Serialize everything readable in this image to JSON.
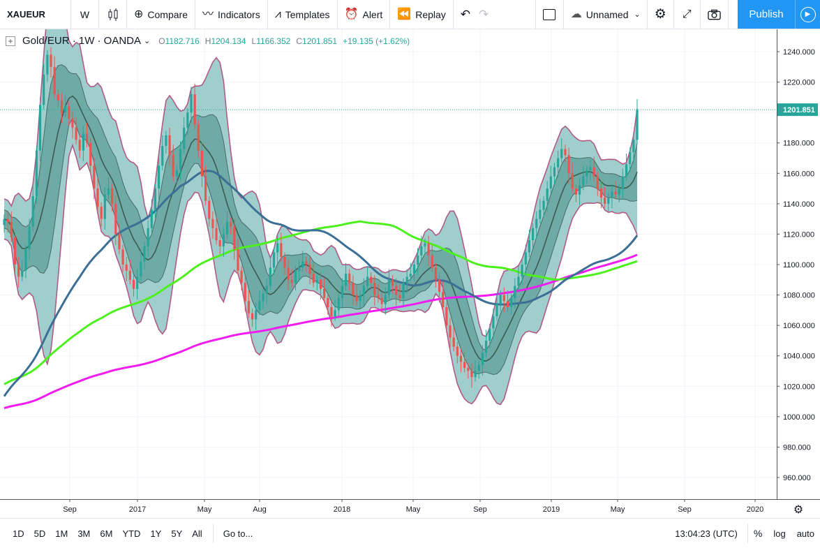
{
  "toolbar": {
    "symbol": "XAUEUR",
    "interval": "W",
    "compare": "Compare",
    "indicators": "Indicators",
    "templates": "Templates",
    "alert": "Alert",
    "replay": "Replay",
    "layout_name": "Unnamed",
    "publish": "Publish"
  },
  "legend": {
    "title": "Gold/EUR · 1W · OANDA",
    "open_label": "O",
    "open": "1182.716",
    "high_label": "H",
    "high": "1204.134",
    "low_label": "L",
    "low": "1166.352",
    "close_label": "C",
    "close": "1201.851",
    "change": "+19.135 (+1.62%)"
  },
  "price_axis": {
    "ticks": [
      "1240.000",
      "1220.000",
      "1200.000",
      "1180.000",
      "1160.000",
      "1140.000",
      "1120.000",
      "1100.000",
      "1080.000",
      "1060.000",
      "1040.000",
      "1020.000",
      "1000.000",
      "980.000",
      "960.000"
    ],
    "last_price": "1201.851"
  },
  "time_axis": {
    "ticks": [
      "Sep",
      "2017",
      "May",
      "Aug",
      "2018",
      "May",
      "Sep",
      "2019",
      "May",
      "Sep",
      "2020"
    ]
  },
  "bottom": {
    "ranges": [
      "1D",
      "5D",
      "1M",
      "3M",
      "6M",
      "YTD",
      "1Y",
      "5Y",
      "All"
    ],
    "goto": "Go to...",
    "time": "13:04:23 (UTC)",
    "percent": "%",
    "log": "log",
    "auto": "auto"
  },
  "colors": {
    "up": "#26a69a",
    "down": "#ef5350",
    "ma_blue": "#3b6f96",
    "ma_green": "#4cf01c",
    "ma_magenta": "#f01cf0",
    "bb_outer_fill": "#8fc6c3",
    "bb_inner_fill": "#5e9e9a",
    "bb_band_line": "#b05a85",
    "accent": "#2196f3"
  },
  "chart_data": {
    "type": "candlestick",
    "symbol": "Gold/EUR",
    "interval": "1W",
    "ylim": [
      950,
      1250
    ],
    "closes": [
      1130,
      1128,
      1118,
      1100,
      1092,
      1096,
      1110,
      1125,
      1145,
      1175,
      1205,
      1225,
      1238,
      1230,
      1212,
      1208,
      1200,
      1204,
      1196,
      1190,
      1182,
      1175,
      1186,
      1180,
      1165,
      1150,
      1138,
      1130,
      1146,
      1150,
      1140,
      1120,
      1110,
      1100,
      1096,
      1090,
      1084,
      1092,
      1102,
      1112,
      1124,
      1136,
      1150,
      1165,
      1178,
      1185,
      1172,
      1158,
      1162,
      1176,
      1190,
      1200,
      1212,
      1192,
      1175,
      1158,
      1142,
      1130,
      1124,
      1116,
      1112,
      1120,
      1128,
      1125,
      1110,
      1096,
      1088,
      1076,
      1068,
      1064,
      1070,
      1076,
      1081,
      1086,
      1098,
      1108,
      1114,
      1105,
      1098,
      1090,
      1088,
      1096,
      1098,
      1102,
      1100,
      1094,
      1088,
      1090,
      1084,
      1078,
      1072,
      1066,
      1070,
      1078,
      1086,
      1094,
      1088,
      1080,
      1076,
      1080,
      1086,
      1092,
      1088,
      1080,
      1078,
      1074,
      1080,
      1090,
      1086,
      1080,
      1078,
      1088,
      1092,
      1094,
      1100,
      1106,
      1112,
      1114,
      1106,
      1098,
      1090,
      1082,
      1072,
      1060,
      1052,
      1046,
      1040,
      1036,
      1032,
      1030,
      1026,
      1030,
      1034,
      1042,
      1050,
      1058,
      1066,
      1074,
      1080,
      1076,
      1072,
      1078,
      1086,
      1092,
      1100,
      1108,
      1116,
      1124,
      1130,
      1136,
      1142,
      1150,
      1158,
      1164,
      1170,
      1176,
      1172,
      1160,
      1150,
      1146,
      1152,
      1158,
      1162,
      1164,
      1158,
      1150,
      1144,
      1140,
      1144,
      1148,
      1146,
      1150,
      1158,
      1166,
      1174,
      1182,
      1201.851
    ],
    "moving_averages": [
      {
        "color": "#3b6f96",
        "length_weeks": 50
      },
      {
        "color": "#4cf01c",
        "length_weeks": 100
      },
      {
        "color": "#f01cf0",
        "length_weeks": 200
      }
    ]
  }
}
